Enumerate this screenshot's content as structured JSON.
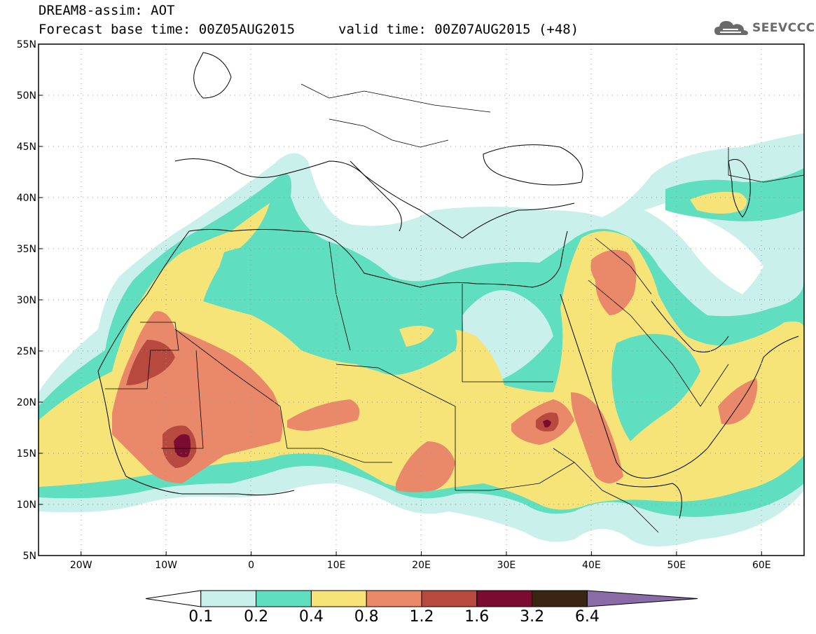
{
  "header": {
    "model_line": "DREAM8-assim: AOT",
    "base_time": "Forecast base time: 00Z05AUG2015",
    "valid_time": "valid time: 00Z07AUG2015 (+48)"
  },
  "logo": {
    "text": "SEEVCCC",
    "icon": "cloud-logo-icon"
  },
  "map": {
    "lat_labels": [
      "55N",
      "50N",
      "45N",
      "40N",
      "35N",
      "30N",
      "25N",
      "20N",
      "15N",
      "10N",
      "5N"
    ],
    "lon_labels": [
      "20W",
      "10W",
      "0",
      "10E",
      "20E",
      "30E",
      "40E",
      "50E",
      "60E"
    ],
    "lat_range": [
      5,
      55
    ],
    "lon_range": [
      -25,
      65
    ],
    "grid": "dotted"
  },
  "colorbar": {
    "levels": [
      "0.1",
      "0.2",
      "0.4",
      "0.8",
      "1.2",
      "1.6",
      "3.2",
      "6.4"
    ],
    "colors": [
      "#ffffff",
      "#c9f0ea",
      "#5fdfbf",
      "#f7e479",
      "#e9896a",
      "#b8493f",
      "#7b0b31",
      "#3a2512",
      "#8b6aa8"
    ]
  }
}
